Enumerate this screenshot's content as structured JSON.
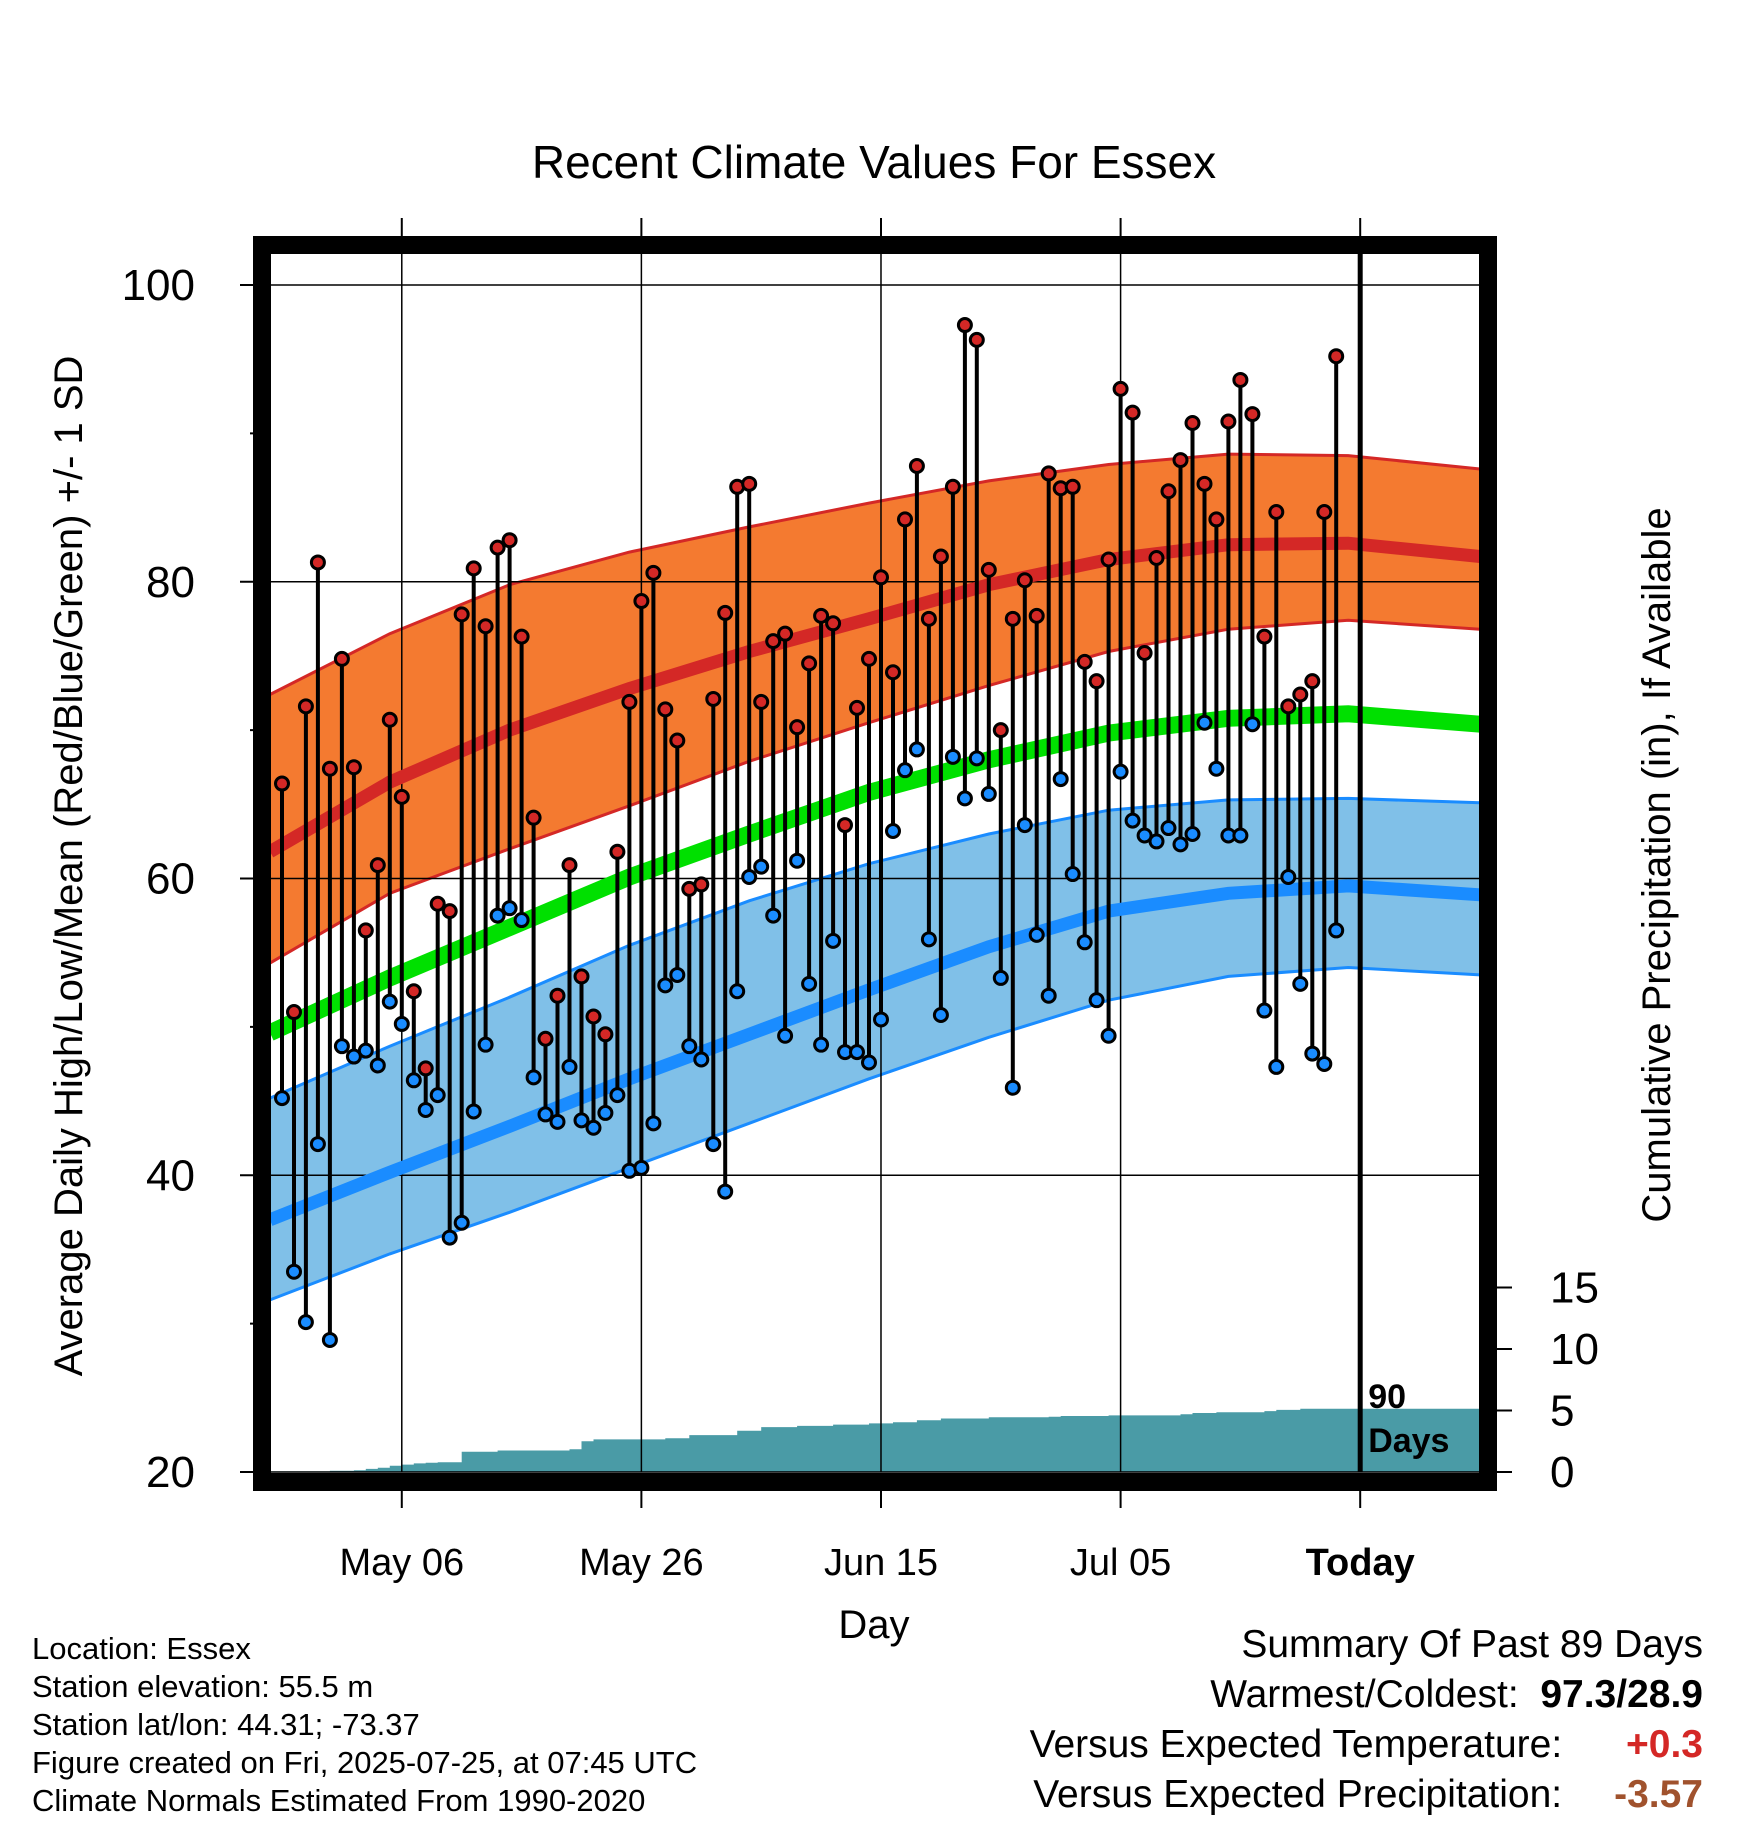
{
  "chart_data": {
    "type": "line",
    "title": "Recent Climate Values For Essex",
    "xlabel": "Day",
    "ylabel": "Average Daily High/Low/Mean (Red/Blue/Green) +/- 1 SD",
    "y2label": "Cumulative Precipitation (in), If Available",
    "ylim": [
      20,
      100
    ],
    "y2lim": [
      0,
      15
    ],
    "yticks": [
      "100",
      "80",
      "60",
      "40",
      "20"
    ],
    "y2ticks": [
      "15",
      "10",
      "5",
      "0"
    ],
    "xticks": [
      "May 06",
      "May 26",
      "Jun 15",
      "Jul 05",
      "Today"
    ],
    "xtick_days": [
      11,
      31,
      51,
      71,
      91
    ],
    "xlim": [
      0,
      101
    ],
    "today_day": 91,
    "today_label_1": "90",
    "today_label_2": "Days",
    "grid": true,
    "colors": {
      "high": "#d42826",
      "high_band": "#f47a30",
      "low": "#1a8cff",
      "low_band": "#80c0e8",
      "mean": "#00e000",
      "precip": "#4a9ba6",
      "frame": "#000000"
    },
    "normals": {
      "days": [
        0,
        10,
        20,
        30,
        40,
        50,
        60,
        70,
        80,
        90,
        101
      ],
      "high_mean": [
        61.8,
        66.5,
        70.0,
        72.8,
        75.3,
        77.5,
        79.8,
        81.5,
        82.5,
        82.6,
        81.7
      ],
      "high_upper": [
        72.4,
        76.5,
        79.8,
        82.0,
        83.7,
        85.3,
        86.8,
        87.9,
        88.6,
        88.5,
        87.6
      ],
      "high_lower": [
        54.3,
        59.0,
        62.0,
        64.9,
        67.9,
        70.5,
        73.0,
        75.3,
        76.8,
        77.4,
        76.8
      ],
      "mean": [
        49.6,
        53.3,
        56.7,
        60.1,
        63.0,
        65.8,
        68.0,
        69.8,
        70.8,
        71.1,
        70.4
      ],
      "low_mean": [
        37.0,
        40.2,
        43.3,
        46.5,
        49.5,
        52.5,
        55.4,
        57.8,
        59.0,
        59.5,
        58.9
      ],
      "low_upper": [
        45.2,
        48.7,
        52.0,
        55.5,
        58.5,
        61.0,
        63.0,
        64.6,
        65.3,
        65.4,
        65.1
      ],
      "low_lower": [
        31.6,
        34.7,
        37.5,
        40.5,
        43.5,
        46.5,
        49.3,
        51.8,
        53.4,
        54.0,
        53.5
      ]
    },
    "daily": {
      "highs": [
        66.4,
        51.0,
        71.6,
        81.3,
        67.4,
        74.8,
        67.5,
        56.5,
        60.9,
        70.7,
        65.5,
        52.4,
        47.2,
        58.3,
        57.8,
        77.8,
        80.9,
        77.0,
        82.3,
        82.8,
        76.3,
        64.1,
        49.2,
        52.1,
        60.9,
        53.4,
        50.7,
        49.5,
        61.8,
        71.9,
        78.7,
        80.6,
        71.4,
        69.3,
        59.3,
        59.6,
        72.1,
        77.9,
        86.4,
        86.6,
        71.9,
        76.0,
        76.5,
        70.2,
        74.5,
        77.7,
        77.2,
        63.6,
        71.5,
        74.8,
        80.3,
        73.9,
        84.2,
        87.8,
        77.5,
        81.7,
        86.4,
        97.3,
        96.3,
        80.8,
        70.0,
        77.5,
        80.1,
        77.7,
        87.3,
        86.3,
        86.4,
        74.6,
        73.3,
        81.5,
        93.0,
        91.4,
        75.2,
        81.6,
        86.1,
        88.2,
        90.7,
        86.6,
        84.2,
        90.8,
        93.6,
        91.3,
        76.3,
        84.7,
        71.6,
        72.4,
        73.3,
        84.7,
        95.2
      ],
      "lows": [
        45.2,
        33.5,
        30.1,
        42.1,
        28.9,
        48.7,
        48.0,
        48.4,
        47.4,
        51.7,
        50.2,
        46.4,
        44.4,
        45.4,
        35.8,
        36.8,
        44.3,
        48.8,
        57.5,
        58.0,
        57.2,
        46.6,
        44.1,
        43.6,
        47.3,
        43.7,
        43.2,
        44.2,
        45.4,
        40.3,
        40.5,
        43.5,
        52.8,
        53.5,
        48.7,
        47.8,
        42.1,
        38.9,
        52.4,
        60.1,
        60.8,
        57.5,
        49.4,
        61.2,
        52.9,
        48.8,
        55.8,
        48.3,
        48.3,
        47.6,
        50.5,
        63.2,
        67.3,
        68.7,
        55.9,
        50.8,
        68.2,
        65.4,
        68.1,
        65.7,
        53.3,
        45.9,
        63.6,
        56.2,
        52.1,
        66.7,
        60.3,
        55.7,
        51.8,
        49.4,
        67.2,
        63.9,
        62.9,
        62.5,
        63.4,
        62.3,
        63.0,
        70.5,
        67.4,
        62.9,
        62.9,
        70.4,
        51.1,
        47.3,
        60.1,
        52.9,
        48.2,
        47.5,
        56.5
      ]
    },
    "precip": {
      "days": [
        0,
        3,
        5,
        7,
        8,
        9,
        10,
        11,
        12,
        13,
        14,
        15,
        16,
        19,
        20,
        21,
        22,
        25,
        26,
        27,
        28,
        31,
        33,
        34,
        35,
        38,
        39,
        40,
        41,
        44,
        47,
        50,
        52,
        53,
        54,
        56,
        57,
        60,
        65,
        66,
        70,
        76,
        77,
        79,
        83,
        84,
        86,
        101
      ],
      "values": [
        0.05,
        0.05,
        0.1,
        0.15,
        0.25,
        0.35,
        0.5,
        0.6,
        0.7,
        0.75,
        0.8,
        0.8,
        1.65,
        1.75,
        1.75,
        1.75,
        1.75,
        1.85,
        2.5,
        2.65,
        2.65,
        2.65,
        2.75,
        2.75,
        3.0,
        3.0,
        3.35,
        3.35,
        3.65,
        3.75,
        3.85,
        3.95,
        4.05,
        4.05,
        4.2,
        4.35,
        4.35,
        4.45,
        4.5,
        4.55,
        4.6,
        4.7,
        4.8,
        4.85,
        4.95,
        5.05,
        5.15,
        5.2
      ]
    }
  },
  "info": {
    "location": "Location: Essex",
    "elevation": "Station elevation: 55.5 m",
    "latlon": "Station lat/lon: 44.31; -73.37",
    "created": "Figure created on Fri, 2025-07-25, at 07:45 UTC",
    "normals": "Climate Normals Estimated From 1990-2020"
  },
  "summary": {
    "title": "Summary Of Past 89 Days",
    "warm_cold_label": "Warmest/Coldest:",
    "warm_cold_value": "97.3/28.9",
    "temp_label": "Versus Expected Temperature:",
    "temp_value": "+0.3",
    "temp_color": "#d42826",
    "precip_label": "Versus Expected Precipitation:",
    "precip_value": "-3.57",
    "precip_color": "#a0522d"
  }
}
